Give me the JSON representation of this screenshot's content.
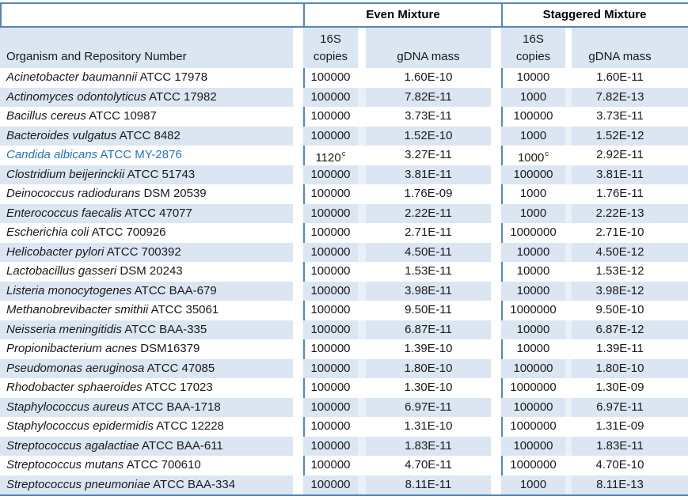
{
  "table": {
    "column_groups": {
      "even": "Even Mixture",
      "staggered": "Staggered Mixture"
    },
    "column_headers": {
      "organism": "Organism and Repository Number",
      "copies_top": "16S",
      "copies_bottom": "copies",
      "gdna_mass": "gDNA mass"
    },
    "colors": {
      "rule_line_blue": "#5486be",
      "stripe_blue": "#dbe6f2",
      "highlight_text_blue": "#2273ba"
    },
    "rows": [
      {
        "organism": "Acinetobacter baumannii",
        "repository": "ATCC 17978",
        "even_copies": "100000",
        "even_sup": "",
        "even_mass": "1.60E-10",
        "stag_copies": "10000",
        "stag_sup": "",
        "stag_mass": "1.60E-11",
        "highlight": false
      },
      {
        "organism": "Actinomyces odontolyticus",
        "repository": "ATCC 17982",
        "even_copies": "100000",
        "even_sup": "",
        "even_mass": "7.82E-11",
        "stag_copies": "1000",
        "stag_sup": "",
        "stag_mass": "7.82E-13",
        "highlight": false
      },
      {
        "organism": "Bacillus cereus",
        "repository": "ATCC 10987",
        "even_copies": "100000",
        "even_sup": "",
        "even_mass": "3.73E-11",
        "stag_copies": "100000",
        "stag_sup": "",
        "stag_mass": "3.73E-11",
        "highlight": false
      },
      {
        "organism": "Bacteroides vulgatus",
        "repository": "ATCC 8482",
        "even_copies": "100000",
        "even_sup": "",
        "even_mass": "1.52E-10",
        "stag_copies": "1000",
        "stag_sup": "",
        "stag_mass": "1.52E-12",
        "highlight": false
      },
      {
        "organism": "Candida albicans",
        "repository": "ATCC MY-2876",
        "even_copies": "1120",
        "even_sup": "c",
        "even_mass": "3.27E-11",
        "stag_copies": "1000",
        "stag_sup": "c",
        "stag_mass": "2.92E-11",
        "highlight": true
      },
      {
        "organism": "Clostridium beijerinckii",
        "repository": "ATCC 51743",
        "even_copies": "100000",
        "even_sup": "",
        "even_mass": "3.81E-11",
        "stag_copies": "100000",
        "stag_sup": "",
        "stag_mass": "3.81E-11",
        "highlight": false
      },
      {
        "organism": "Deinococcus radiodurans",
        "repository": "DSM 20539",
        "even_copies": "100000",
        "even_sup": "",
        "even_mass": "1.76E-09",
        "stag_copies": "1000",
        "stag_sup": "",
        "stag_mass": "1.76E-11",
        "highlight": false
      },
      {
        "organism": "Enterococcus faecalis",
        "repository": "ATCC 47077",
        "even_copies": "100000",
        "even_sup": "",
        "even_mass": "2.22E-11",
        "stag_copies": "1000",
        "stag_sup": "",
        "stag_mass": "2.22E-13",
        "highlight": false
      },
      {
        "organism": "Escherichia coli",
        "repository": "ATCC 700926",
        "even_copies": "100000",
        "even_sup": "",
        "even_mass": "2.71E-11",
        "stag_copies": "1000000",
        "stag_sup": "",
        "stag_mass": "2.71E-10",
        "highlight": false
      },
      {
        "organism": "Helicobacter pylori",
        "repository": "ATCC 700392",
        "even_copies": "100000",
        "even_sup": "",
        "even_mass": "4.50E-11",
        "stag_copies": "10000",
        "stag_sup": "",
        "stag_mass": "4.50E-12",
        "highlight": false
      },
      {
        "organism": "Lactobacillus gasseri",
        "repository": "DSM 20243",
        "even_copies": "100000",
        "even_sup": "",
        "even_mass": "1.53E-11",
        "stag_copies": "10000",
        "stag_sup": "",
        "stag_mass": "1.53E-12",
        "highlight": false
      },
      {
        "organism": "Listeria monocytogenes",
        "repository": "ATCC BAA-679",
        "even_copies": "100000",
        "even_sup": "",
        "even_mass": "3.98E-11",
        "stag_copies": "10000",
        "stag_sup": "",
        "stag_mass": "3.98E-12",
        "highlight": false
      },
      {
        "organism": "Methanobrevibacter smithii",
        "repository": "ATCC 35061",
        "even_copies": "100000",
        "even_sup": "",
        "even_mass": "9.50E-11",
        "stag_copies": "1000000",
        "stag_sup": "",
        "stag_mass": "9.50E-10",
        "highlight": false
      },
      {
        "organism": "Neisseria meningitidis",
        "repository": "ATCC BAA-335",
        "even_copies": "100000",
        "even_sup": "",
        "even_mass": "6.87E-11",
        "stag_copies": "10000",
        "stag_sup": "",
        "stag_mass": "6.87E-12",
        "highlight": false
      },
      {
        "organism": "Propionibacterium acnes",
        "repository": "DSM16379",
        "even_copies": "100000",
        "even_sup": "",
        "even_mass": "1.39E-10",
        "stag_copies": "10000",
        "stag_sup": "",
        "stag_mass": "1.39E-11",
        "highlight": false
      },
      {
        "organism": "Pseudomonas aeruginosa",
        "repository": "ATCC 47085",
        "even_copies": "100000",
        "even_sup": "",
        "even_mass": "1.80E-10",
        "stag_copies": "100000",
        "stag_sup": "",
        "stag_mass": "1.80E-10",
        "highlight": false
      },
      {
        "organism": "Rhodobacter sphaeroides",
        "repository": "ATCC 17023",
        "even_copies": "100000",
        "even_sup": "",
        "even_mass": "1.30E-10",
        "stag_copies": "1000000",
        "stag_sup": "",
        "stag_mass": "1.30E-09",
        "highlight": false
      },
      {
        "organism": "Staphylococcus aureus",
        "repository": "ATCC BAA-1718",
        "even_copies": "100000",
        "even_sup": "",
        "even_mass": "6.97E-11",
        "stag_copies": "100000",
        "stag_sup": "",
        "stag_mass": "6.97E-11",
        "highlight": false
      },
      {
        "organism": "Staphylococcus epidermidis",
        "repository": "ATCC 12228",
        "even_copies": "100000",
        "even_sup": "",
        "even_mass": "1.31E-10",
        "stag_copies": "1000000",
        "stag_sup": "",
        "stag_mass": "1.31E-09",
        "highlight": false
      },
      {
        "organism": "Streptococcus agalactiae",
        "repository": "ATCC BAA-611",
        "even_copies": "100000",
        "even_sup": "",
        "even_mass": "1.83E-11",
        "stag_copies": "100000",
        "stag_sup": "",
        "stag_mass": "1.83E-11",
        "highlight": false
      },
      {
        "organism": "Streptococcus mutans",
        "repository": "ATCC 700610",
        "even_copies": "100000",
        "even_sup": "",
        "even_mass": "4.70E-11",
        "stag_copies": "1000000",
        "stag_sup": "",
        "stag_mass": "4.70E-10",
        "highlight": false
      },
      {
        "organism": "Streptococcus pneumoniae",
        "repository": "ATCC BAA-334",
        "even_copies": "100000",
        "even_sup": "",
        "even_mass": "8.11E-11",
        "stag_copies": "1000",
        "stag_sup": "",
        "stag_mass": "8.11E-13",
        "highlight": false
      }
    ]
  }
}
